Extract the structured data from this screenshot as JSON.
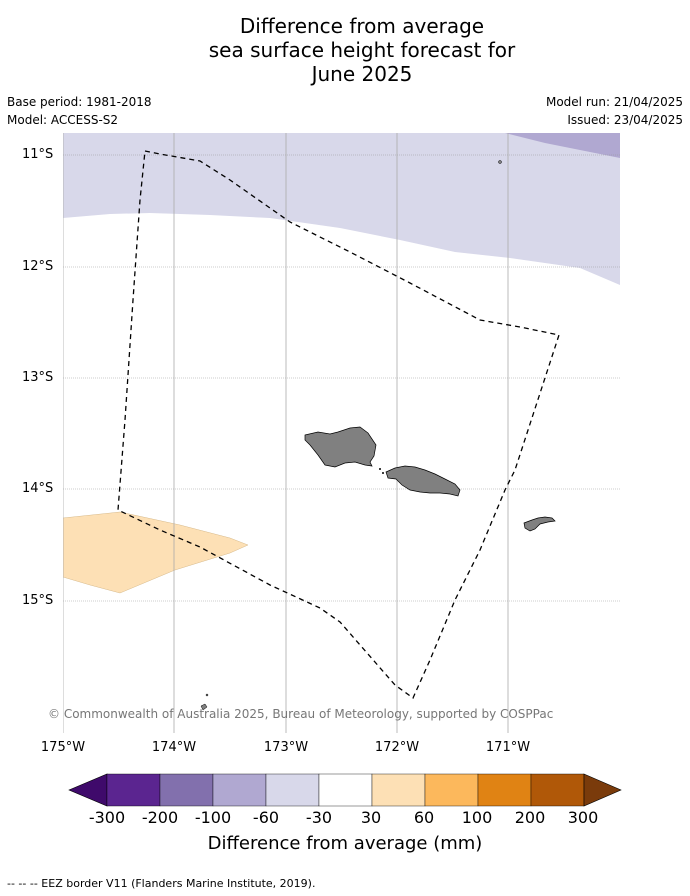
{
  "title_lines": [
    "Difference from average",
    "sea surface height forecast for",
    "June 2025"
  ],
  "meta": {
    "base_period": "Base period: 1981-2018",
    "model": "Model: ACCESS-S2",
    "model_run": "Model run: 21/04/2025",
    "issued": "Issued: 23/04/2025"
  },
  "axes": {
    "lat_labels": [
      "11°S",
      "12°S",
      "13°S",
      "14°S",
      "15°S"
    ],
    "lon_labels": [
      "175°W",
      "174°W",
      "173°W",
      "172°W",
      "171°W"
    ]
  },
  "copyright": "© Commonwealth of Australia 2025, Bureau of Meteorology, supported by COSPPac",
  "colorbar": {
    "title": "Difference from average (mm)",
    "tick_labels": [
      "-300",
      "-200",
      "-100",
      "-60",
      "-30",
      "30",
      "60",
      "100",
      "200",
      "300"
    ],
    "colors": [
      "#3f0a6b",
      "#5b2590",
      "#8270ad",
      "#b0a8d1",
      "#d8d8ea",
      "#ffffff",
      "#fde0b5",
      "#fcb85c",
      "#e08314",
      "#b05808",
      "#7a3b0b"
    ]
  },
  "footer": "-- -- -- EEZ border V11 (Flanders Marine Institute, 2019)."
}
